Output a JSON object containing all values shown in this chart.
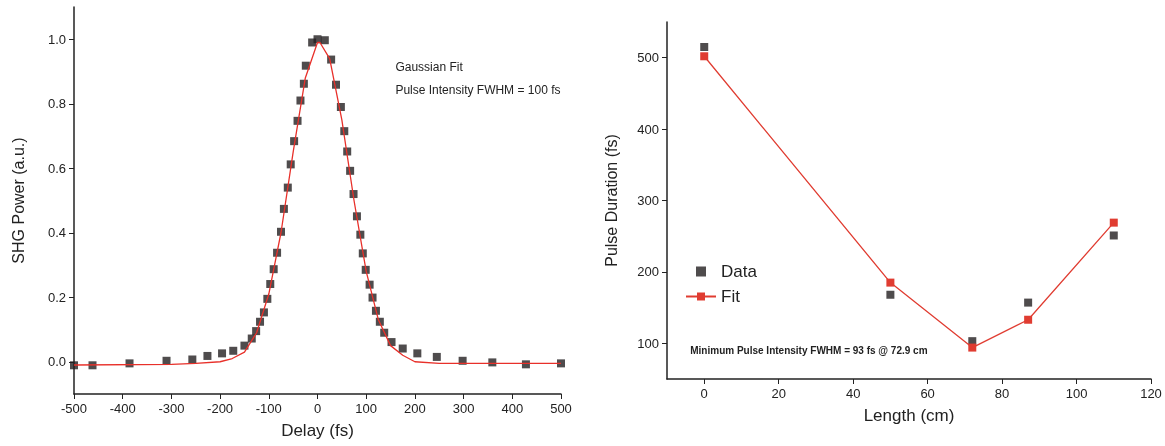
{
  "chart_data": [
    {
      "type": "scatter",
      "xlabel": "Delay (fs)",
      "ylabel": "SHG Power (a.u.)",
      "annotations": [
        "Gaussian Fit",
        "Pulse Intensity FWHM = 100 fs"
      ],
      "xlim": [
        -500,
        500
      ],
      "xticks": [
        -500,
        -400,
        -300,
        -200,
        -100,
        0,
        100,
        200,
        300,
        400,
        500
      ],
      "ylim": [
        -0.1,
        1.1
      ],
      "yticks": [
        {
          "value": 0,
          "label": "0.0"
        },
        0.2,
        0.4,
        0.6,
        0.8,
        {
          "value": 1,
          "label": "1.0"
        }
      ],
      "grid": false,
      "legend": false,
      "series": [
        {
          "type": "scatter",
          "marker": "square",
          "color": "#231f20",
          "x": [
            -500,
            -462,
            -386,
            -310,
            -257,
            -226,
            -196,
            -173,
            -150,
            -135,
            -126,
            -118,
            -110,
            -103,
            -97,
            -90,
            -83,
            -75,
            -69,
            -61,
            -55,
            -48,
            -41,
            -35,
            -28,
            -24,
            -11,
            0,
            15,
            28,
            38,
            48,
            55,
            61,
            67,
            74,
            81,
            88,
            93,
            99,
            107,
            113,
            120,
            128,
            137,
            152,
            175,
            205,
            245,
            298,
            359,
            428,
            500
          ],
          "values": [
            -0.011,
            -0.011,
            -0.005,
            0.003,
            0.007,
            0.018,
            0.026,
            0.034,
            0.05,
            0.072,
            0.095,
            0.124,
            0.153,
            0.195,
            0.241,
            0.287,
            0.338,
            0.403,
            0.474,
            0.54,
            0.612,
            0.684,
            0.747,
            0.81,
            0.862,
            0.918,
            0.99,
            1.0,
            0.997,
            0.937,
            0.859,
            0.79,
            0.715,
            0.652,
            0.592,
            0.52,
            0.451,
            0.394,
            0.336,
            0.285,
            0.239,
            0.199,
            0.158,
            0.124,
            0.09,
            0.061,
            0.041,
            0.026,
            0.015,
            0.003,
            -0.002,
            -0.008,
            -0.005
          ]
        },
        {
          "type": "line",
          "marker": "none",
          "color": "#e8302a",
          "x": [
            -500,
            -300,
            -250,
            -200,
            -175,
            -150,
            -125,
            -100,
            -75,
            -50,
            -25,
            0,
            5,
            25,
            50,
            75,
            100,
            125,
            150,
            175,
            200,
            250,
            300,
            500
          ],
          "values": [
            -0.01,
            -0.008,
            -0.005,
            0.0,
            0.01,
            0.03,
            0.09,
            0.21,
            0.4,
            0.65,
            0.88,
            0.99,
            0.99,
            0.94,
            0.75,
            0.5,
            0.28,
            0.13,
            0.05,
            0.02,
            0.0,
            -0.005,
            -0.005,
            -0.005
          ]
        }
      ]
    },
    {
      "type": "scatter",
      "xlabel": "Length (cm)",
      "ylabel": "Pulse Duration (fs)",
      "annotations": [
        "Minimum Pulse Intensity FWHM = 93 fs @ 72.9 cm"
      ],
      "xlim": [
        -10,
        120
      ],
      "xticks": [
        0,
        20,
        40,
        60,
        80,
        100,
        120
      ],
      "ylim": [
        50,
        550
      ],
      "yticks": [
        100,
        200,
        300,
        400,
        500
      ],
      "grid": false,
      "legend": "left",
      "series": [
        {
          "name": "Data",
          "type": "scatter",
          "marker": "square",
          "color": "#231f20",
          "x": [
            0,
            50,
            72,
            87,
            110
          ],
          "values": [
            515,
            168,
            103,
            157,
            251
          ]
        },
        {
          "name": "Fit",
          "type": "line",
          "marker": "square",
          "color": "#e03c31",
          "x": [
            0,
            50,
            72,
            87,
            110
          ],
          "values": [
            502,
            185,
            94,
            133,
            269
          ]
        }
      ]
    }
  ]
}
